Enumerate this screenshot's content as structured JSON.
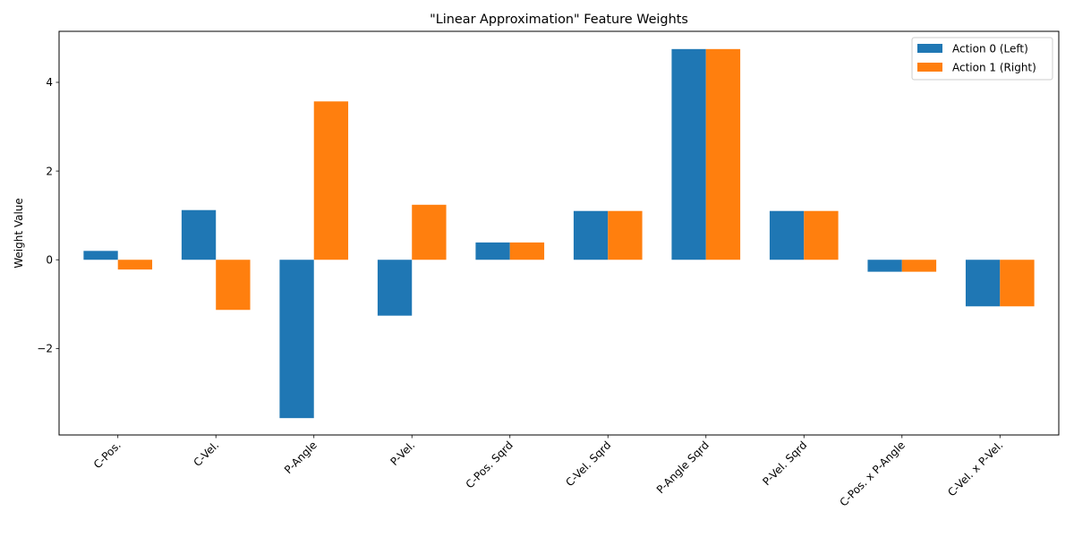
{
  "chart_data": {
    "type": "bar",
    "title": "\"Linear Approximation\" Feature Weights",
    "xlabel": "",
    "ylabel": "Weight Value",
    "ylim": [
      -3.95,
      5.15
    ],
    "yticks": [
      -2,
      0,
      2,
      4
    ],
    "categories": [
      "C-Pos.",
      "C-Vel.",
      "P-Angle",
      "P-Vel.",
      "C-Pos. Sqrd",
      "C-Vel. Sqrd",
      "P-Angle Sqrd",
      "P-Vel. Sqrd",
      "C-Pos. x P-Angle",
      "C-Vel. x P-Vel."
    ],
    "series": [
      {
        "name": "Action 0 (Left)",
        "color": "#1f77b4",
        "values": [
          0.2,
          1.12,
          -3.57,
          -1.26,
          0.39,
          1.1,
          4.75,
          1.1,
          -0.27,
          -1.05
        ]
      },
      {
        "name": "Action 1 (Right)",
        "color": "#ff7f0e",
        "values": [
          -0.22,
          -1.13,
          3.57,
          1.24,
          0.39,
          1.1,
          4.75,
          1.1,
          -0.27,
          -1.05
        ]
      }
    ],
    "legend_position": "top-right",
    "grid": false
  }
}
